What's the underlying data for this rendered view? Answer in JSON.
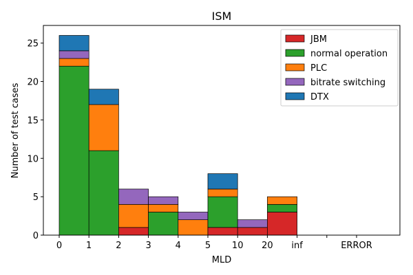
{
  "chart_data": {
    "type": "bar",
    "stacked": true,
    "title": "ISM",
    "xlabel": "MLD",
    "ylabel": "Number of test cases",
    "ylim": [
      0,
      27.3
    ],
    "yticks": [
      0,
      5,
      10,
      15,
      20,
      25
    ],
    "bin_edge_labels": [
      "0",
      "1",
      "2",
      "3",
      "4",
      "5",
      "10",
      "20",
      "inf",
      "",
      "ERROR"
    ],
    "legend_position": "top-right",
    "series": [
      {
        "name": "JBM",
        "color": "#d62728",
        "values": [
          0,
          0,
          1,
          0,
          0,
          1,
          1,
          3,
          0,
          0
        ]
      },
      {
        "name": "normal operation",
        "color": "#2ca02c",
        "values": [
          22,
          11,
          0,
          3,
          0,
          4,
          0,
          1,
          0,
          0
        ]
      },
      {
        "name": "PLC",
        "color": "#ff7f0e",
        "values": [
          1,
          6,
          3,
          1,
          2,
          1,
          0,
          1,
          0,
          0
        ]
      },
      {
        "name": "bitrate switching",
        "color": "#9467bd",
        "values": [
          1,
          0,
          2,
          1,
          1,
          0,
          1,
          0,
          0,
          0
        ]
      },
      {
        "name": "DTX",
        "color": "#1f77b4",
        "values": [
          2,
          2,
          0,
          0,
          0,
          2,
          0,
          0,
          0,
          0
        ]
      }
    ]
  }
}
